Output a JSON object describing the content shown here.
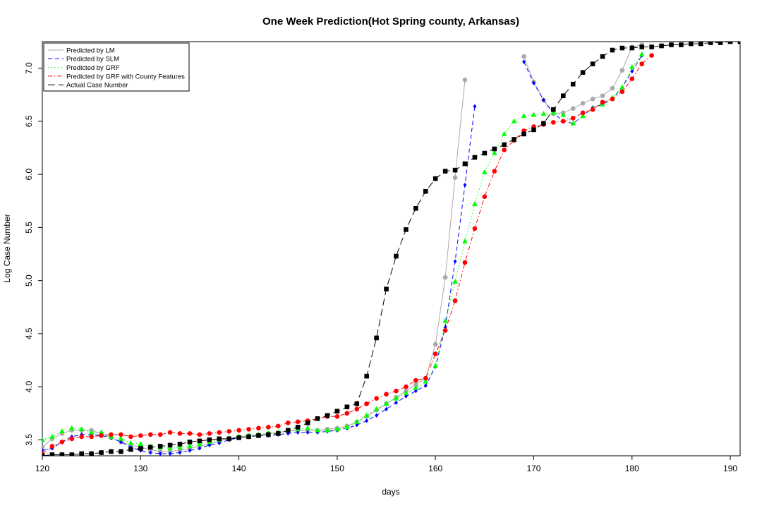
{
  "chart_data": {
    "type": "line",
    "title": "One Week Prediction(Hot Spring county, Arkansas)",
    "xlabel": "days",
    "ylabel": "Log Case Number",
    "xlim": [
      120,
      191
    ],
    "ylim": [
      3.35,
      7.25
    ],
    "xticks": [
      "120",
      "130",
      "140",
      "150",
      "160",
      "170",
      "180",
      "190"
    ],
    "yticks": [
      "3.5",
      "4.0",
      "4.5",
      "5.0",
      "5.5",
      "6.0",
      "6.5",
      "7.0"
    ],
    "grid": false,
    "legend_position": "top-left",
    "series": [
      {
        "name": "Predicted by LM",
        "color": "#aaaaaa",
        "dash": "solid",
        "marker": "circle",
        "x": [
          120,
          121,
          122,
          123,
          124,
          125,
          126,
          127,
          128,
          129,
          130,
          131,
          132,
          133,
          134,
          135,
          136,
          137,
          138,
          139,
          140,
          141,
          142,
          143,
          144,
          145,
          146,
          147,
          148,
          149,
          150,
          151,
          152,
          153,
          154,
          155,
          156,
          157,
          158,
          159,
          160,
          161,
          162,
          163,
          169,
          170,
          171,
          172,
          173,
          174,
          175,
          176,
          177,
          178,
          179,
          180,
          181
        ],
        "values": [
          3.43,
          3.51,
          3.56,
          3.59,
          3.59,
          3.59,
          3.56,
          3.52,
          3.48,
          3.45,
          3.43,
          3.41,
          3.39,
          3.39,
          3.4,
          3.42,
          3.44,
          3.46,
          3.49,
          3.51,
          3.53,
          3.54,
          3.55,
          3.56,
          3.57,
          3.58,
          3.59,
          3.59,
          3.59,
          3.6,
          3.61,
          3.63,
          3.67,
          3.72,
          3.78,
          3.84,
          3.9,
          3.96,
          4.02,
          4.08,
          4.4,
          5.03,
          5.97,
          6.89,
          7.11,
          6.87,
          6.7,
          6.57,
          6.58,
          6.62,
          6.67,
          6.71,
          6.74,
          6.81,
          6.98,
          7.2,
          7.22
        ]
      },
      {
        "name": "Predicted by SLM",
        "color": "#0000ff",
        "dash": "dashed",
        "marker": "diamond",
        "x": [
          120,
          121,
          122,
          123,
          124,
          125,
          126,
          127,
          128,
          129,
          130,
          131,
          132,
          133,
          134,
          135,
          136,
          137,
          138,
          139,
          140,
          141,
          142,
          143,
          144,
          145,
          146,
          147,
          148,
          149,
          150,
          151,
          152,
          153,
          154,
          155,
          156,
          157,
          158,
          159,
          160,
          161,
          162,
          163,
          164,
          169,
          170,
          171,
          172,
          173,
          174,
          175,
          176,
          177,
          178,
          179,
          180,
          181
        ],
        "values": [
          3.4,
          3.42,
          3.48,
          3.53,
          3.55,
          3.55,
          3.54,
          3.52,
          3.48,
          3.43,
          3.4,
          3.38,
          3.37,
          3.37,
          3.38,
          3.4,
          3.42,
          3.45,
          3.47,
          3.5,
          3.52,
          3.53,
          3.54,
          3.54,
          3.55,
          3.56,
          3.57,
          3.57,
          3.57,
          3.58,
          3.59,
          3.61,
          3.64,
          3.68,
          3.73,
          3.79,
          3.85,
          3.91,
          3.96,
          4.01,
          4.19,
          4.56,
          5.18,
          5.9,
          6.64,
          7.06,
          6.86,
          6.7,
          6.58,
          6.5,
          6.48,
          6.55,
          6.63,
          6.66,
          6.71,
          6.82,
          6.97,
          7.12
        ]
      },
      {
        "name": "Predicted by GRF",
        "color": "#00ff00",
        "dash": "dotted",
        "marker": "triangle",
        "x": [
          120,
          121,
          122,
          123,
          124,
          125,
          126,
          127,
          128,
          129,
          130,
          131,
          132,
          133,
          134,
          135,
          136,
          137,
          138,
          139,
          140,
          141,
          142,
          143,
          144,
          145,
          146,
          147,
          148,
          149,
          150,
          151,
          152,
          153,
          154,
          155,
          156,
          157,
          158,
          159,
          160,
          161,
          162,
          163,
          164,
          165,
          166,
          167,
          168,
          169,
          170,
          171,
          172,
          173,
          174,
          175,
          176,
          177,
          178,
          179,
          180,
          181
        ],
        "values": [
          3.5,
          3.53,
          3.58,
          3.61,
          3.6,
          3.57,
          3.57,
          3.53,
          3.51,
          3.47,
          3.46,
          3.44,
          3.43,
          3.42,
          3.43,
          3.44,
          3.46,
          3.48,
          3.5,
          3.52,
          3.53,
          3.54,
          3.55,
          3.56,
          3.57,
          3.59,
          3.6,
          3.61,
          3.59,
          3.59,
          3.6,
          3.62,
          3.67,
          3.73,
          3.79,
          3.84,
          3.89,
          3.94,
          3.99,
          4.05,
          4.2,
          4.62,
          4.99,
          5.37,
          5.72,
          6.02,
          6.2,
          6.38,
          6.5,
          6.55,
          6.56,
          6.57,
          6.58,
          6.56,
          6.48,
          6.55,
          6.62,
          6.66,
          6.72,
          6.82,
          7.01,
          7.13
        ]
      },
      {
        "name": "Predicted by GRF with County Features",
        "color": "#ff0000",
        "dash": "dashdot",
        "marker": "circle",
        "x": [
          120,
          121,
          122,
          123,
          124,
          125,
          126,
          127,
          128,
          129,
          130,
          131,
          132,
          133,
          134,
          135,
          136,
          137,
          138,
          139,
          140,
          141,
          142,
          143,
          144,
          145,
          146,
          147,
          148,
          149,
          150,
          151,
          152,
          153,
          154,
          155,
          156,
          157,
          158,
          159,
          160,
          161,
          162,
          163,
          164,
          165,
          166,
          167,
          168,
          169,
          170,
          171,
          172,
          173,
          174,
          175,
          176,
          177,
          178,
          179,
          180,
          181,
          182
        ],
        "values": [
          3.37,
          3.44,
          3.48,
          3.51,
          3.53,
          3.53,
          3.54,
          3.55,
          3.55,
          3.53,
          3.54,
          3.55,
          3.55,
          3.57,
          3.56,
          3.56,
          3.55,
          3.56,
          3.57,
          3.58,
          3.59,
          3.6,
          3.61,
          3.62,
          3.63,
          3.66,
          3.67,
          3.68,
          3.7,
          3.72,
          3.72,
          3.75,
          3.79,
          3.84,
          3.89,
          3.93,
          3.96,
          4.0,
          4.06,
          4.08,
          4.31,
          4.53,
          4.81,
          5.17,
          5.49,
          5.79,
          6.03,
          6.23,
          6.32,
          6.41,
          6.45,
          6.47,
          6.49,
          6.5,
          6.53,
          6.58,
          6.61,
          6.68,
          6.71,
          6.78,
          6.9,
          7.04,
          7.12
        ]
      },
      {
        "name": "Actual Case Number",
        "color": "#000000",
        "dash": "longdash",
        "marker": "square",
        "x": [
          120,
          121,
          122,
          123,
          124,
          125,
          126,
          127,
          128,
          129,
          130,
          131,
          132,
          133,
          134,
          135,
          136,
          137,
          138,
          139,
          140,
          141,
          142,
          143,
          144,
          145,
          146,
          147,
          148,
          149,
          150,
          151,
          152,
          153,
          154,
          155,
          156,
          157,
          158,
          159,
          160,
          161,
          162,
          163,
          164,
          165,
          166,
          167,
          168,
          169,
          170,
          171,
          172,
          173,
          174,
          175,
          176,
          177,
          178,
          179,
          180,
          181,
          182,
          183,
          184,
          185,
          186,
          187,
          188,
          189,
          190,
          191
        ],
        "values": [
          3.35,
          3.36,
          3.36,
          3.36,
          3.37,
          3.37,
          3.38,
          3.39,
          3.39,
          3.41,
          3.42,
          3.43,
          3.44,
          3.45,
          3.46,
          3.48,
          3.49,
          3.5,
          3.51,
          3.51,
          3.52,
          3.53,
          3.54,
          3.55,
          3.56,
          3.59,
          3.62,
          3.66,
          3.7,
          3.73,
          3.77,
          3.81,
          3.84,
          4.1,
          4.46,
          4.92,
          5.23,
          5.48,
          5.68,
          5.84,
          5.96,
          6.03,
          6.04,
          6.1,
          6.16,
          6.2,
          6.24,
          6.28,
          6.33,
          6.38,
          6.42,
          6.48,
          6.61,
          6.74,
          6.85,
          6.96,
          7.04,
          7.11,
          7.17,
          7.19,
          7.19,
          7.2,
          7.2,
          7.21,
          7.22,
          7.22,
          7.23,
          7.23,
          7.24,
          7.24,
          7.25,
          7.25
        ]
      }
    ]
  }
}
